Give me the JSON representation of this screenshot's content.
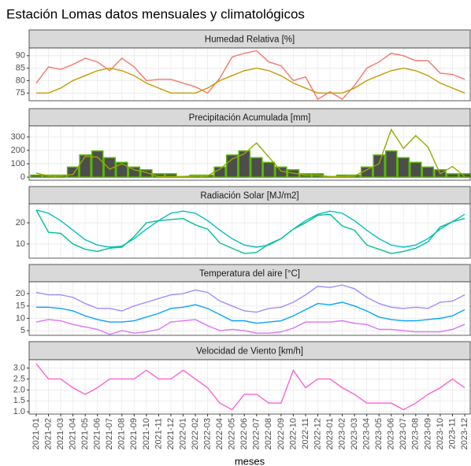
{
  "title": "Estación Lomas datos mensuales y climatológicos",
  "chart_data": [
    {
      "type": "line",
      "title": "Humedad Relativa [%]",
      "ylim": [
        71.9,
        93.1
      ],
      "yticks": [
        75,
        80,
        85,
        90
      ],
      "grid": true,
      "series": [
        {
          "color": "#F8766D",
          "values": [
            79,
            85.5,
            84.5,
            86.5,
            89,
            87.5,
            84,
            89,
            85.5,
            80,
            80.5,
            80.5,
            79,
            77.5,
            75,
            81,
            89.5,
            91,
            92,
            87.5,
            86,
            80,
            81.5,
            72.5,
            75.5,
            72.5,
            78,
            85,
            87.5,
            91,
            90,
            88,
            88,
            83,
            82.5,
            80.5
          ]
        },
        {
          "color": "#C49A00",
          "values": [
            75,
            75,
            77,
            80,
            82,
            84,
            85,
            84,
            82,
            79,
            77,
            75,
            75,
            75,
            77,
            80,
            82,
            84,
            85,
            84,
            82,
            79,
            77,
            75,
            75,
            75,
            77,
            80,
            82,
            84,
            85,
            84,
            82,
            79,
            77,
            75
          ]
        }
      ]
    },
    {
      "type": "line",
      "title": "Precipitación Acumulada [mm]",
      "ylim": [
        -23,
        382
      ],
      "yticks": [
        0,
        100,
        200,
        300
      ],
      "grid": true,
      "series": [
        {
          "type": "bar",
          "color": "#4D4D4D",
          "stroke": "#53B400",
          "values": [
            15,
            15,
            15,
            75,
            165,
            195,
            145,
            110,
            75,
            55,
            25,
            25,
            5,
            15,
            15,
            75,
            165,
            195,
            145,
            110,
            75,
            55,
            25,
            25,
            5,
            15,
            15,
            75,
            165,
            195,
            145,
            110,
            75,
            55,
            25,
            25
          ]
        },
        {
          "type": "line",
          "color": "#99A800",
          "values": [
            30,
            10,
            10,
            20,
            155,
            150,
            60,
            100,
            55,
            35,
            5,
            5,
            5,
            10,
            10,
            60,
            135,
            175,
            255,
            150,
            45,
            30,
            15,
            15,
            5,
            5,
            10,
            55,
            100,
            355,
            215,
            310,
            225,
            25,
            80,
            5
          ]
        }
      ]
    },
    {
      "type": "line",
      "title": "Radiación Solar [MJ/m2]",
      "ylim": [
        3.3,
        28.9
      ],
      "yticks": [
        10,
        20
      ],
      "grid": true,
      "series": [
        {
          "color": "#00BFC4",
          "values": [
            26,
            24.5,
            21,
            16.5,
            12,
            9.5,
            8.5,
            9,
            12.5,
            17,
            21,
            24.5,
            25.5,
            24.5,
            21,
            16.5,
            12.5,
            9.5,
            8.5,
            9.5,
            12.5,
            17,
            21,
            24,
            25.5,
            24.5,
            21,
            16.5,
            12.5,
            9.5,
            8.5,
            9.5,
            12.5,
            17,
            20.5,
            24
          ]
        },
        {
          "color": "#00C094",
          "values": [
            26,
            15.5,
            15,
            10,
            7.5,
            6.5,
            8,
            8.5,
            13.5,
            20,
            21,
            21.5,
            22,
            19,
            17,
            10.5,
            8,
            5.5,
            6,
            10,
            12.5,
            17,
            20,
            23.5,
            24,
            18.5,
            16.5,
            9.5,
            7.5,
            5.5,
            6.5,
            8,
            11,
            18,
            20.5,
            22
          ]
        }
      ]
    },
    {
      "type": "line",
      "title": "Temperatura del aire [°C]",
      "ylim": [
        3.1,
        24.8
      ],
      "yticks": [
        5,
        10,
        15,
        20
      ],
      "grid": true,
      "series": [
        {
          "color": "#A58AFF",
          "values": [
            20.5,
            19.5,
            19.5,
            18.5,
            16,
            14,
            14,
            13,
            15,
            16.5,
            18,
            19.5,
            20,
            21.5,
            20.5,
            17,
            15,
            13,
            12.5,
            14,
            14.5,
            16.5,
            19.5,
            23,
            22.5,
            23.5,
            22,
            18.5,
            16,
            14.5,
            14,
            14.5,
            14,
            16.5,
            17,
            19.5
          ]
        },
        {
          "color": "#06A4FF",
          "values": [
            14.5,
            14.5,
            14,
            13,
            11,
            9.5,
            8.5,
            8.5,
            9,
            10.5,
            12,
            14,
            14.5,
            15.5,
            14,
            11.5,
            9,
            9,
            8,
            8.5,
            9,
            11,
            13.5,
            16,
            15.5,
            16.5,
            15,
            13,
            10.5,
            9.5,
            9,
            9,
            9.5,
            10,
            11,
            13.5
          ]
        },
        {
          "color": "#DF70F8",
          "values": [
            8.5,
            9.5,
            9,
            7.5,
            6.5,
            5.5,
            3.5,
            5,
            4,
            4.5,
            5.5,
            8.5,
            9,
            9.5,
            7,
            5,
            5.5,
            5,
            4,
            4,
            4.5,
            6,
            8.5,
            8.5,
            8.5,
            9,
            8,
            7.5,
            5.5,
            5.5,
            5,
            4.5,
            4.5,
            4.5,
            5.5,
            7.5
          ]
        }
      ]
    },
    {
      "type": "line",
      "title": "Velocidad de Viento [km/h]",
      "ylim": [
        0.9,
        3.38
      ],
      "yticks": [
        {
          "value": 1,
          "label": "1.0"
        },
        1.5,
        {
          "value": 2,
          "label": "2.0"
        },
        2.5,
        {
          "value": 3,
          "label": "3.0"
        }
      ],
      "grid": true,
      "x_label": "meses",
      "categories": [
        "2021-01",
        "2021-02",
        "2021-03",
        "2021-04",
        "2021-05",
        "2021-06",
        "2021-07",
        "2021-08",
        "2021-09",
        "2021-10",
        "2021-11",
        "2021-12",
        "2022-01",
        "2022-02",
        "2022-03",
        "2022-04",
        "2022-05",
        "2022-06",
        "2022-07",
        "2022-08",
        "2022-09",
        "2022-10",
        "2022-11",
        "2022-12",
        "2023-01",
        "2023-02",
        "2023-03",
        "2023-04",
        "2023-05",
        "2023-06",
        "2023-07",
        "2023-08",
        "2023-09",
        "2023-10",
        "2023-11",
        "2023-12"
      ],
      "series": [
        {
          "color": "#FB61D7",
          "values": [
            3.2,
            2.5,
            2.5,
            2.1,
            1.8,
            2.1,
            2.5,
            2.5,
            2.5,
            2.9,
            2.5,
            2.5,
            2.9,
            2.5,
            2.1,
            1.4,
            1.1,
            1.8,
            1.8,
            1.4,
            1.4,
            2.9,
            2.1,
            2.5,
            2.5,
            2.1,
            1.8,
            1.4,
            1.4,
            1.4,
            1.1,
            1.4,
            1.8,
            2.1,
            2.5,
            2.1
          ]
        }
      ]
    }
  ]
}
